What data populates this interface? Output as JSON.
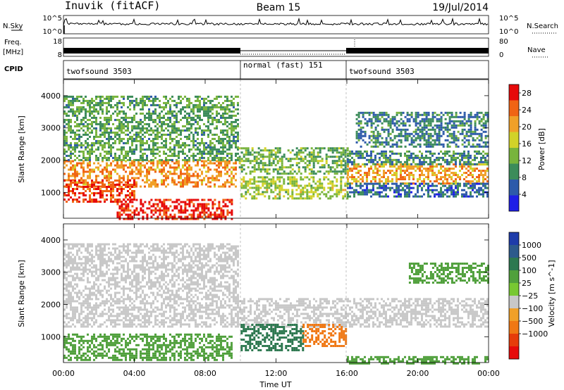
{
  "header": {
    "station": "Inuvik (fitACF)",
    "beam": "Beam 15",
    "date": "19/Jul/2014"
  },
  "nsky_panel": {
    "left_label": "N.Sky",
    "left_ticks": [
      "10^5",
      "10^0"
    ],
    "right_ticks": [
      "10^5",
      "10^0"
    ],
    "right_label": "N.Search"
  },
  "freq_panel": {
    "left_label_line1": "Freq.",
    "left_label_line2": "[MHz]",
    "left_ticks": [
      "18",
      "8"
    ],
    "right_ticks": [
      "80",
      "0"
    ],
    "right_label": "Nave"
  },
  "cpid_panel": {
    "label": "CPID",
    "segments": [
      "twofsound 3503",
      "normal (fast) 151",
      "twofsound 3503"
    ]
  },
  "chart_data": [
    {
      "type": "heatmap",
      "name": "power",
      "ylabel": "Slant Range [km]",
      "ylim": [
        200,
        4500
      ],
      "yticks": [
        "1000",
        "2000",
        "3000",
        "4000"
      ],
      "xlabel": "Time UT",
      "xticks": [
        "00:00",
        "04:00",
        "08:00",
        "12:00",
        "16:00",
        "20:00",
        "00:00"
      ],
      "xlim_hours": [
        0,
        24
      ],
      "colorbar": {
        "label": "Power [dB]",
        "ticks": [
          "4",
          "8",
          "12",
          "16",
          "20",
          "24",
          "28"
        ],
        "range": [
          0,
          30
        ],
        "colors": [
          "#1e1ee6",
          "#2d5aaa",
          "#3c8c5a",
          "#78b43c",
          "#d2d228",
          "#f0a028",
          "#f06414",
          "#e60a0a"
        ]
      },
      "bands": [
        {
          "t0": 0.0,
          "t1": 9.7,
          "r0": 1200,
          "r1": 2000,
          "value": 22
        },
        {
          "t0": 0.0,
          "t1": 4.0,
          "r0": 700,
          "r1": 1400,
          "value": 26
        },
        {
          "t0": 3.0,
          "t1": 9.5,
          "r0": 200,
          "r1": 800,
          "value": 28
        },
        {
          "t0": 0.0,
          "t1": 9.8,
          "r0": 2000,
          "r1": 4000,
          "value": 11
        },
        {
          "t0": 9.9,
          "t1": 16.0,
          "r0": 1600,
          "r1": 2400,
          "value": 12
        },
        {
          "t0": 10.0,
          "t1": 16.0,
          "r0": 800,
          "r1": 1500,
          "value": 15
        },
        {
          "t0": 16.0,
          "t1": 24.0,
          "r0": 1300,
          "r1": 1900,
          "value": 21
        },
        {
          "t0": 16.0,
          "t1": 24.0,
          "r0": 1900,
          "r1": 2300,
          "value": 9
        },
        {
          "t0": 16.0,
          "t1": 24.0,
          "r0": 900,
          "r1": 1300,
          "value": 7
        },
        {
          "t0": 16.5,
          "t1": 24.0,
          "r0": 2400,
          "r1": 3500,
          "value": 8
        }
      ]
    },
    {
      "type": "heatmap",
      "name": "velocity",
      "ylabel": "Slant Range [km]",
      "ylim": [
        200,
        4500
      ],
      "yticks": [
        "1000",
        "2000",
        "3000",
        "4000"
      ],
      "xlabel": "Time UT",
      "xticks": [
        "00:00",
        "04:00",
        "08:00",
        "12:00",
        "16:00",
        "20:00",
        "00:00"
      ],
      "xlim_hours": [
        0,
        24
      ],
      "colorbar": {
        "label": "Velocity [m s^-1]",
        "ticks": [
          "1000",
          "500",
          "100",
          "25",
          "−25",
          "−100",
          "−500",
          "−1000"
        ],
        "colors": [
          "#1e3caa",
          "#2d5a8c",
          "#2d7850",
          "#50a03c",
          "#78c832",
          "#c8c8c8",
          "#f0a028",
          "#f07814",
          "#e63c0a",
          "#e60a0a"
        ]
      },
      "bands": [
        {
          "t0": 0.0,
          "t1": 24.0,
          "r0": 1300,
          "r1": 2200,
          "value": 0
        },
        {
          "t0": 0.0,
          "t1": 9.8,
          "r0": 2200,
          "r1": 3900,
          "value": 0
        },
        {
          "t0": 0.0,
          "t1": 9.5,
          "r0": 300,
          "r1": 1100,
          "value": 60
        },
        {
          "t0": 10.0,
          "t1": 13.5,
          "r0": 600,
          "r1": 1400,
          "value": 180
        },
        {
          "t0": 13.5,
          "t1": 16.0,
          "r0": 700,
          "r1": 1400,
          "value": -150
        },
        {
          "t0": 19.5,
          "t1": 24.0,
          "r0": 2700,
          "r1": 3300,
          "value": 60
        },
        {
          "t0": 16.0,
          "t1": 24.0,
          "r0": 200,
          "r1": 400,
          "value": 60
        }
      ]
    }
  ]
}
